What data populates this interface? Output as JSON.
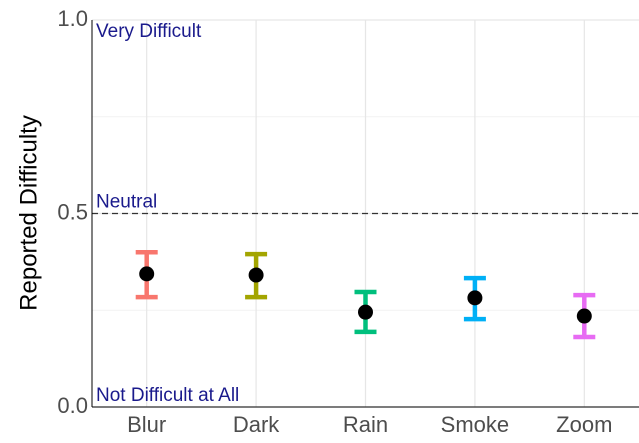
{
  "chart_data": {
    "type": "pointrange",
    "ylabel": "Reported Difficulty",
    "categories": [
      "Blur",
      "Dark",
      "Rain",
      "Smoke",
      "Zoom"
    ],
    "values": [
      0.344,
      0.341,
      0.245,
      0.282,
      0.235
    ],
    "ci_low": [
      0.284,
      0.284,
      0.194,
      0.227,
      0.181
    ],
    "ci_high": [
      0.4,
      0.395,
      0.297,
      0.333,
      0.289
    ],
    "colors": [
      "#F8766D",
      "#A3A500",
      "#00BF7D",
      "#00B0F6",
      "#E76BF3"
    ],
    "point_color": "#000000",
    "ylim": [
      0,
      1
    ],
    "yticks": [
      {
        "value": 0,
        "label": "0.0"
      },
      0.5,
      {
        "value": 1,
        "label": "1.0"
      }
    ],
    "minor_yticks": [
      0.25,
      0.75
    ],
    "grid": true,
    "hline": 0.5,
    "annotations": [
      {
        "text": "Very Difficult",
        "y": 1
      },
      {
        "text": "Neutral",
        "y": 0.5
      },
      {
        "text": "Not Difficult at All",
        "y": 0
      }
    ]
  }
}
